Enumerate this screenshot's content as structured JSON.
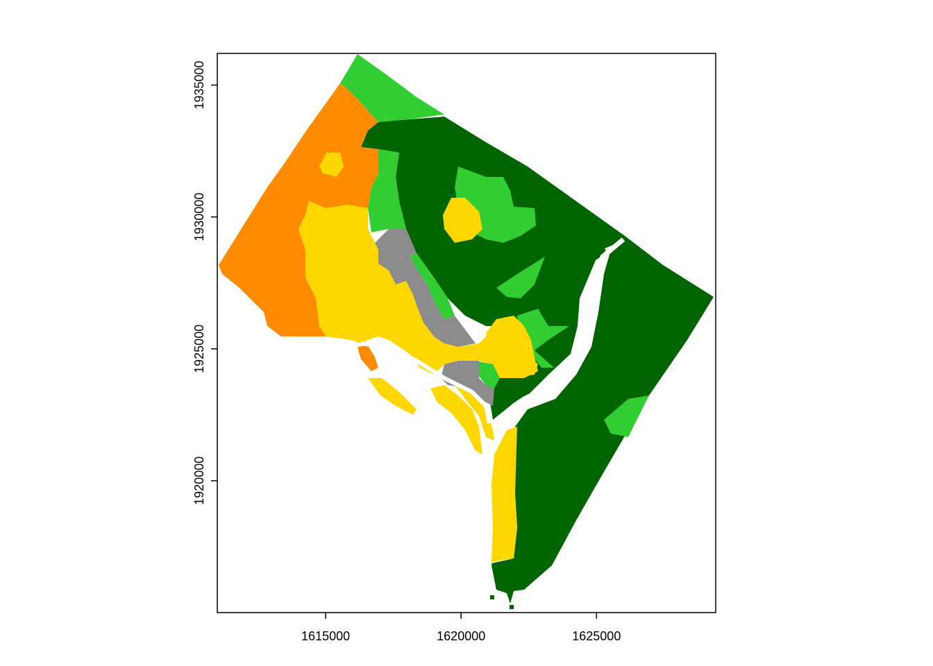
{
  "map": {
    "x_axis": {
      "ticks": [
        {
          "value": 1615000,
          "label": "1615000"
        },
        {
          "value": 1620000,
          "label": "1620000"
        },
        {
          "value": 1625000,
          "label": "1625000"
        }
      ]
    },
    "y_axis": {
      "ticks": [
        {
          "value": 1935000,
          "label": "1935000"
        },
        {
          "value": 1930000,
          "label": "1930000"
        },
        {
          "value": 1925000,
          "label": "1925000"
        },
        {
          "value": 1920000,
          "label": "1920000"
        }
      ]
    },
    "extent": {
      "xmin": 1611000,
      "xmax": 1629400,
      "ymin": 1915000,
      "ymax": 1936200
    },
    "classes": [
      {
        "name": "dark-green",
        "color": "#006400"
      },
      {
        "name": "light-green",
        "color": "#32CD32"
      },
      {
        "name": "orange",
        "color": "#FF8C00"
      },
      {
        "name": "yellow",
        "color": "#FFD700"
      },
      {
        "name": "gray",
        "color": "#8C8C8C"
      }
    ]
  }
}
